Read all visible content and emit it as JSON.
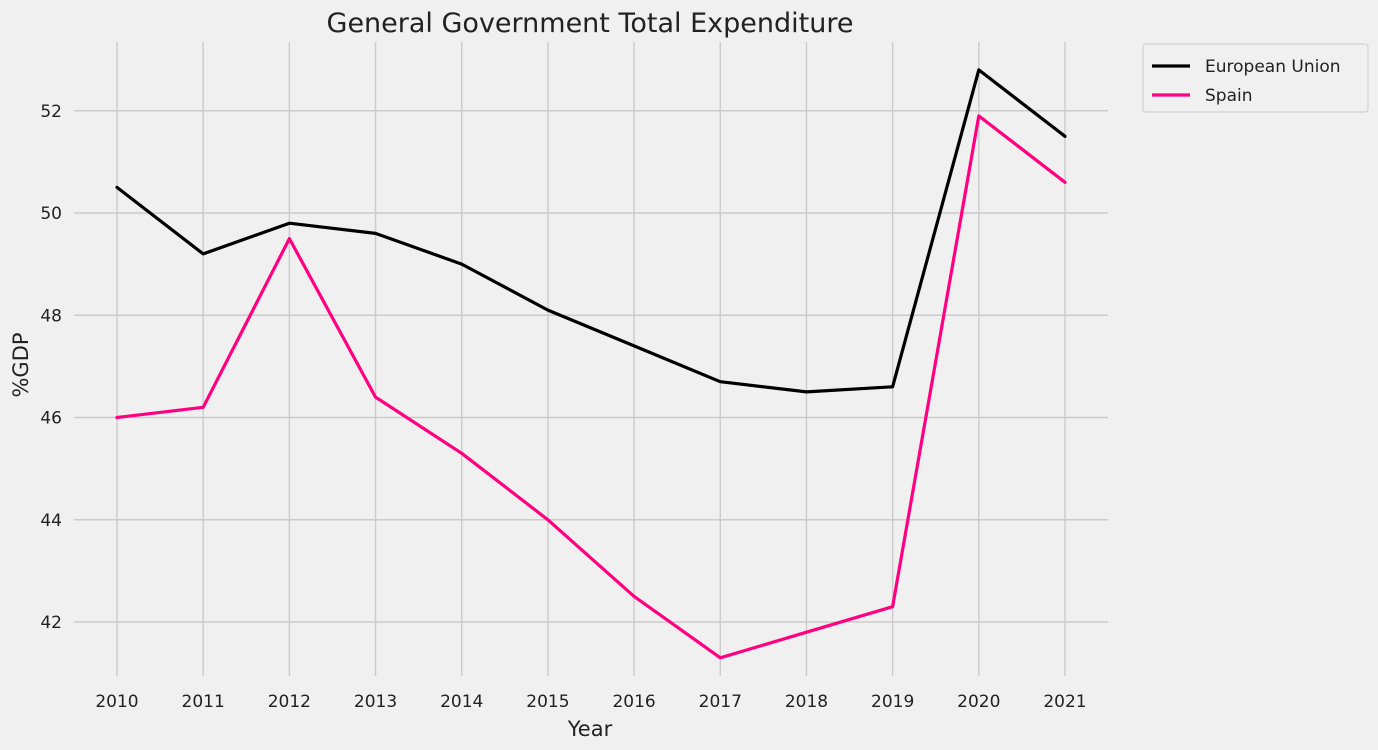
{
  "chart_data": {
    "type": "line",
    "title": "General Government Total Expenditure",
    "xlabel": "Year",
    "ylabel": "%GDP",
    "categories": [
      "2010",
      "2011",
      "2012",
      "2013",
      "2014",
      "2015",
      "2016",
      "2017",
      "2018",
      "2019",
      "2020",
      "2021"
    ],
    "yticks": [
      42,
      44,
      46,
      48,
      50,
      52
    ],
    "ylim": [
      40.9,
      53.3
    ],
    "grid": true,
    "legend_position": "outside-top-right",
    "background_color": "#f0f0f0",
    "series": [
      {
        "name": "European Union",
        "color": "#000000",
        "values": [
          50.5,
          49.2,
          49.8,
          49.6,
          49.0,
          48.1,
          47.4,
          46.7,
          46.5,
          46.6,
          52.8,
          51.5
        ]
      },
      {
        "name": "Spain",
        "color": "#ff0080",
        "values": [
          46.0,
          46.2,
          49.5,
          46.4,
          45.3,
          44.0,
          42.5,
          41.3,
          41.8,
          42.3,
          51.9,
          50.6
        ]
      }
    ]
  }
}
